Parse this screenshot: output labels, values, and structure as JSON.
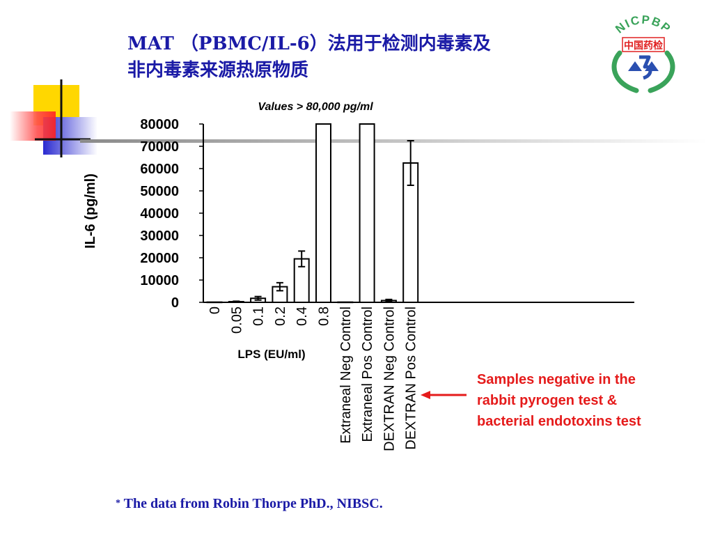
{
  "slide": {
    "title_line1": "MAT （PBMC/IL-6）法用于检测内毒素及",
    "title_line2": "非内毒素来源热原物质",
    "footnote_star": "*",
    "footnote": "The data from Robin Thorpe PhD., NIBSC.",
    "note_lines": [
      "Samples negative in the",
      "rabbit pyrogen test &",
      "bacterial endotoxins test"
    ],
    "title_color": "#1a1aa6",
    "note_color": "#e51b1b"
  },
  "logo": {
    "arc_text": "NICPBP",
    "badge_text": "中国药检",
    "ring_color": "#3aa35a",
    "badge_color": "#e02020",
    "text_color": "#2a4fb0"
  },
  "chart_data": {
    "type": "bar",
    "annotation": "Values > 80,000 pg/ml",
    "ylabel": "IL-6 (pg/ml)",
    "xlabel": "LPS (EU/ml)",
    "ylim": [
      0,
      80000
    ],
    "yticks": [
      0,
      10000,
      20000,
      30000,
      40000,
      50000,
      60000,
      70000,
      80000
    ],
    "categories": [
      "0",
      "0.05",
      "0.1",
      "0.2",
      "0.4",
      "0.8",
      "Extraneal Neg Control",
      "Extraneal Pos Control",
      "DEXTRAN Neg Control",
      "DEXTRAN Pos Control"
    ],
    "values": [
      100,
      300,
      1800,
      7000,
      19500,
      80000,
      100,
      80000,
      800,
      62500
    ],
    "errors": [
      0,
      200,
      800,
      1800,
      3500,
      0,
      0,
      0,
      500,
      10000
    ],
    "bar_fill": "#ffffff",
    "bar_stroke": "#000000"
  }
}
